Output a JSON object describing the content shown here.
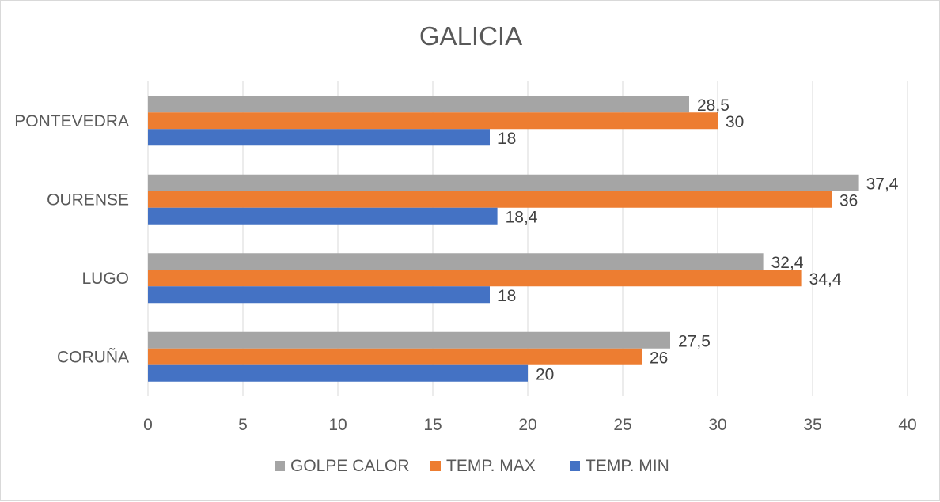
{
  "chart_data": {
    "type": "bar",
    "orientation": "horizontal",
    "title": "GALICIA",
    "categories": [
      "CORUÑA",
      "LUGO",
      "OURENSE",
      "PONTEVEDRA"
    ],
    "series": [
      {
        "name": "GOLPE CALOR",
        "color": "#a5a5a5",
        "values": [
          27.5,
          32.4,
          37.4,
          28.5
        ],
        "labels": [
          "27,5",
          "32,4",
          "37,4",
          "28,5"
        ]
      },
      {
        "name": "TEMP. MAX",
        "color": "#ed7d31",
        "values": [
          26,
          34.4,
          36,
          30
        ],
        "labels": [
          "26",
          "34,4",
          "36",
          "30"
        ]
      },
      {
        "name": "TEMP. MIN",
        "color": "#4472c4",
        "values": [
          20,
          18,
          18.4,
          18
        ],
        "labels": [
          "20",
          "18",
          "18,4",
          "18"
        ]
      }
    ],
    "xlim": [
      0,
      40
    ],
    "xticks": [
      "0",
      "5",
      "10",
      "15",
      "20",
      "25",
      "30",
      "35",
      "40"
    ],
    "grid": true,
    "legend_position": "bottom"
  }
}
